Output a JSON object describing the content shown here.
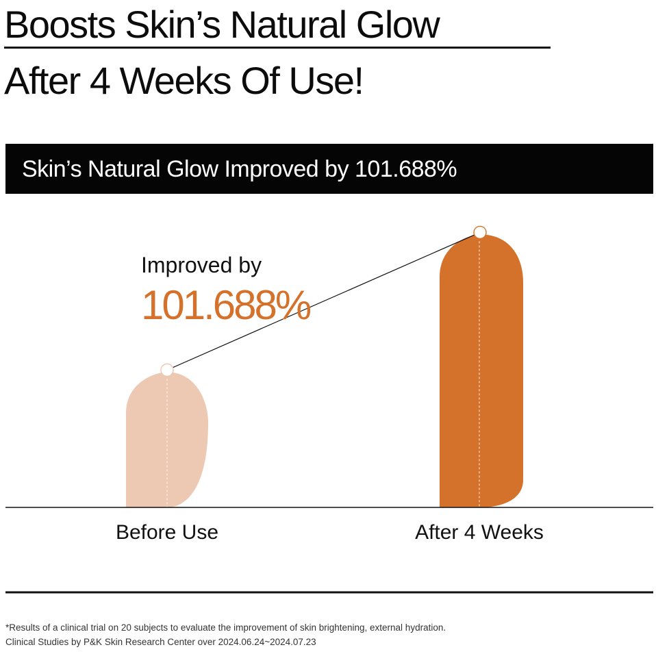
{
  "header": {
    "line1": "Boosts Skin’s Natural Glow",
    "line2": "After 4 Weeks Of Use!"
  },
  "banner": {
    "text": "Skin’s Natural Glow Improved by 101.688%"
  },
  "chart_data": {
    "type": "bar",
    "categories": [
      "Before Use",
      "After 4 Weeks"
    ],
    "values": [
      1.0,
      2.01688
    ],
    "ylim": [
      0,
      2.1
    ],
    "grid": false,
    "annotation": {
      "line1": "Improved by",
      "line2": "101.688%"
    },
    "colors": {
      "before": "#EDC8B2",
      "after": "#D4722B",
      "annotation_value": "#D4722B",
      "connector": "#111111",
      "baseline": "#111111"
    }
  },
  "footnote": {
    "line1": "*Results of a clinical trial on 20 subjects to evaluate the improvement of skin brightening, external hydration.",
    "line2": "Clinical Studies by P&K Skin Research Center over 2024.06.24~2024.07.23"
  }
}
